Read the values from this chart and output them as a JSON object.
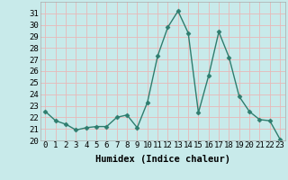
{
  "x": [
    0,
    1,
    2,
    3,
    4,
    5,
    6,
    7,
    8,
    9,
    10,
    11,
    12,
    13,
    14,
    15,
    16,
    17,
    18,
    19,
    20,
    21,
    22,
    23
  ],
  "y": [
    22.5,
    21.7,
    21.4,
    20.9,
    21.1,
    21.2,
    21.2,
    22.0,
    22.2,
    21.1,
    23.3,
    27.3,
    29.8,
    31.2,
    29.3,
    22.4,
    25.6,
    29.4,
    27.2,
    23.8,
    22.5,
    21.8,
    21.7,
    20.1
  ],
  "line_color": "#2e7d6e",
  "marker": "D",
  "marker_size": 2.5,
  "bg_color": "#c8eaea",
  "grid_color": "#e8b8b8",
  "xlabel": "Humidex (Indice chaleur)",
  "ylim": [
    20,
    32
  ],
  "xlim": [
    -0.5,
    23.5
  ],
  "yticks": [
    20,
    21,
    22,
    23,
    24,
    25,
    26,
    27,
    28,
    29,
    30,
    31
  ],
  "xticks": [
    0,
    1,
    2,
    3,
    4,
    5,
    6,
    7,
    8,
    9,
    10,
    11,
    12,
    13,
    14,
    15,
    16,
    17,
    18,
    19,
    20,
    21,
    22,
    23
  ],
  "xlabel_fontsize": 7.5,
  "tick_fontsize": 6.5,
  "line_width": 1.0
}
